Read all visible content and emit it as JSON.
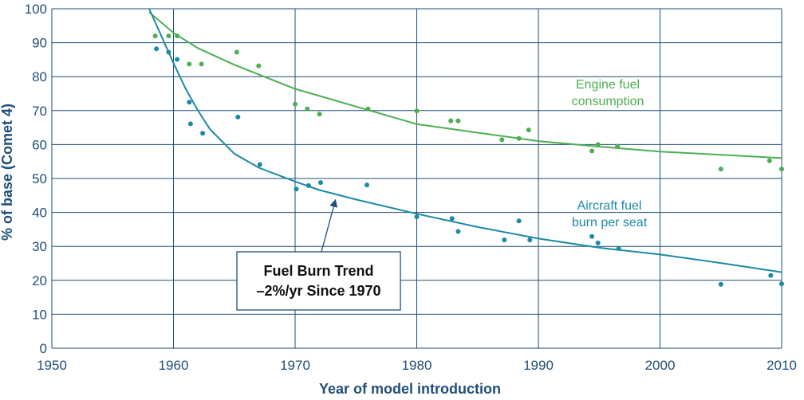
{
  "chart_data": {
    "type": "scatter",
    "title": "",
    "xlabel": "Year of model introduction",
    "ylabel": "% of base (Comet 4)",
    "xlim": [
      1950,
      2010
    ],
    "ylim": [
      0,
      100
    ],
    "xticks": [
      1950,
      1960,
      1970,
      1980,
      1990,
      2000,
      2010
    ],
    "yticks": [
      0,
      10,
      20,
      30,
      40,
      50,
      60,
      70,
      80,
      90,
      100
    ],
    "grid": true,
    "legend": "none",
    "series": [
      {
        "name": "Engine fuel consumption",
        "label_lines": [
          "Engine fuel",
          "consumption"
        ],
        "color": "#4caf50",
        "points": [
          [
            1958.5,
            92
          ],
          [
            1959.6,
            92
          ],
          [
            1960.3,
            92
          ],
          [
            1961.3,
            83.7
          ],
          [
            1962.3,
            83.7
          ],
          [
            1965.2,
            87.2
          ],
          [
            1967.0,
            83.2
          ],
          [
            1970.0,
            71.9
          ],
          [
            1971.0,
            70.5
          ],
          [
            1972.0,
            69.0
          ],
          [
            1976.0,
            70.5
          ],
          [
            1980.0,
            69.9
          ],
          [
            1982.8,
            67.0
          ],
          [
            1983.4,
            67.0
          ],
          [
            1987.0,
            61.4
          ],
          [
            1988.4,
            61.8
          ],
          [
            1989.2,
            64.3
          ],
          [
            1994.4,
            58.1
          ],
          [
            1994.9,
            60.0
          ],
          [
            1996.5,
            59.5
          ],
          [
            2005.0,
            52.8
          ],
          [
            2009.0,
            55.2
          ],
          [
            2010.0,
            52.8
          ]
        ],
        "trend": [
          [
            1958,
            99
          ],
          [
            1960,
            92.9
          ],
          [
            1962,
            88.4
          ],
          [
            1965,
            83.5
          ],
          [
            1970,
            76.4
          ],
          [
            1975,
            71.2
          ],
          [
            1980,
            66.0
          ],
          [
            1985,
            63.5
          ],
          [
            1990,
            61.0
          ],
          [
            1995,
            59.4
          ],
          [
            2000,
            57.9
          ],
          [
            2005,
            57.0
          ],
          [
            2010,
            56.0
          ]
        ]
      },
      {
        "name": "Aircraft fuel burn per seat",
        "label_lines": [
          "Aircraft fuel",
          "burn per seat"
        ],
        "color": "#1b8aa6",
        "points": [
          [
            1958.6,
            88.2
          ],
          [
            1959.6,
            87.2
          ],
          [
            1960.3,
            85.1
          ],
          [
            1961.3,
            72.5
          ],
          [
            1961.4,
            66.1
          ],
          [
            1962.4,
            63.3
          ],
          [
            1965.3,
            68.1
          ],
          [
            1967.1,
            54.1
          ],
          [
            1970.1,
            46.9
          ],
          [
            1971.1,
            47.9
          ],
          [
            1972.1,
            48.8
          ],
          [
            1975.9,
            48.1
          ],
          [
            1980.0,
            38.7
          ],
          [
            1982.9,
            38.2
          ],
          [
            1983.4,
            34.4
          ],
          [
            1987.2,
            31.9
          ],
          [
            1988.4,
            37.5
          ],
          [
            1989.3,
            31.9
          ],
          [
            1994.4,
            32.9
          ],
          [
            1994.9,
            31.0
          ],
          [
            1996.6,
            29.4
          ],
          [
            2005.0,
            18.8
          ],
          [
            2009.1,
            21.4
          ],
          [
            2010.0,
            19.0
          ]
        ],
        "trend": [
          [
            1958,
            100
          ],
          [
            1959,
            92
          ],
          [
            1960,
            84
          ],
          [
            1961,
            76.4
          ],
          [
            1962,
            70.1
          ],
          [
            1963,
            64.5
          ],
          [
            1965,
            57.3
          ],
          [
            1967,
            53.2
          ],
          [
            1970,
            49.1
          ],
          [
            1972,
            46.6
          ],
          [
            1975,
            43.8
          ],
          [
            1980,
            39.6
          ],
          [
            1985,
            35.7
          ],
          [
            1990,
            32.3
          ],
          [
            1995,
            29.6
          ],
          [
            2000,
            27.6
          ],
          [
            2005,
            25.1
          ],
          [
            2010,
            22.4
          ]
        ]
      }
    ],
    "annotations": [
      {
        "lines": [
          "Fuel Burn Trend",
          "–2%/yr Since 1970"
        ],
        "arrow_to": [
          1973.3,
          43.5
        ]
      }
    ]
  }
}
